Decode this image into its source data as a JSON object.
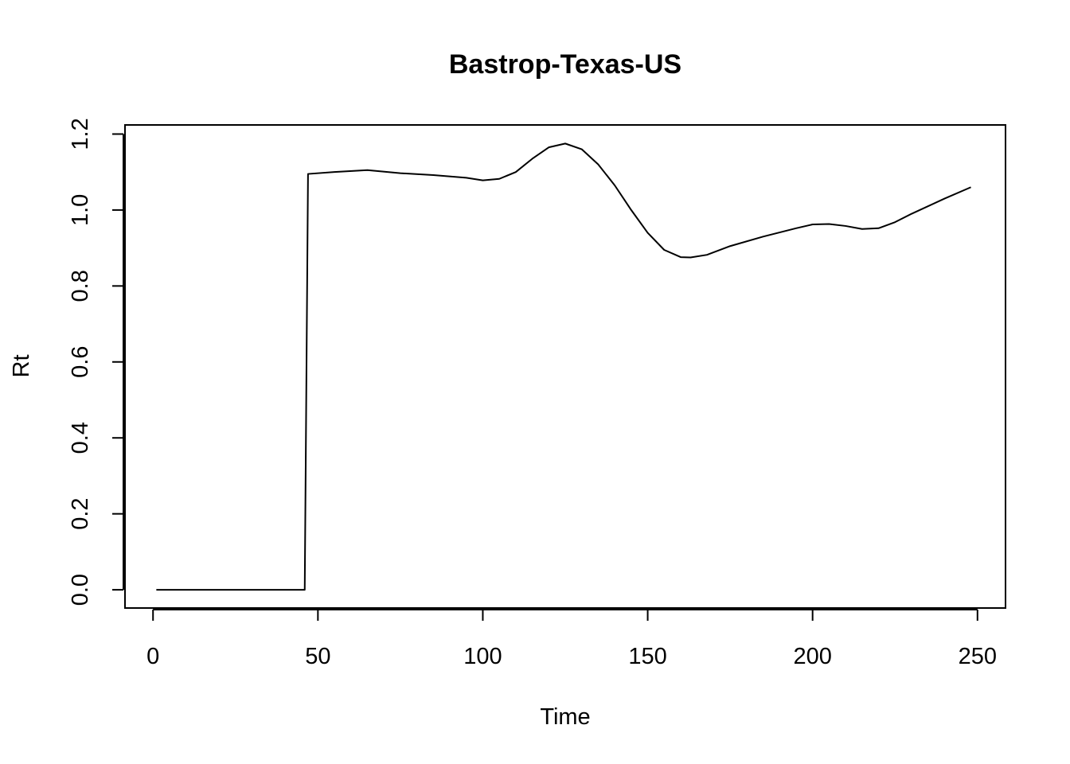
{
  "chart_data": {
    "type": "line",
    "title": "Bastrop-Texas-US",
    "xlabel": "Time",
    "ylabel": "Rt",
    "xlim": [
      -8.5,
      258.5
    ],
    "ylim": [
      -0.048,
      1.224
    ],
    "x_ticks": [
      0,
      50,
      100,
      150,
      200,
      250
    ],
    "y_ticks": [
      0.0,
      0.2,
      0.4,
      0.6,
      0.8,
      1.0,
      1.2
    ],
    "x_tick_labels": [
      "0",
      "50",
      "100",
      "150",
      "200",
      "250"
    ],
    "y_tick_labels": [
      "0.0",
      "0.2",
      "0.4",
      "0.6",
      "0.8",
      "1.0",
      "1.2"
    ],
    "grid": false,
    "legend": "none",
    "series": [
      {
        "color": "#000000",
        "x": [
          1,
          10,
          20,
          30,
          40,
          46,
          47,
          55,
          65,
          75,
          85,
          95,
          100,
          105,
          110,
          115,
          120,
          125,
          130,
          135,
          140,
          145,
          150,
          155,
          160,
          163,
          168,
          175,
          185,
          195,
          200,
          205,
          210,
          215,
          220,
          225,
          230,
          240,
          248
        ],
        "y": [
          0.0,
          0.0,
          0.0,
          0.0,
          0.0,
          0.0,
          1.095,
          1.1,
          1.105,
          1.097,
          1.092,
          1.085,
          1.078,
          1.082,
          1.1,
          1.135,
          1.165,
          1.175,
          1.16,
          1.12,
          1.065,
          1.0,
          0.94,
          0.895,
          0.876,
          0.875,
          0.882,
          0.905,
          0.93,
          0.952,
          0.962,
          0.963,
          0.958,
          0.95,
          0.952,
          0.968,
          0.99,
          1.03,
          1.06
        ]
      }
    ]
  }
}
